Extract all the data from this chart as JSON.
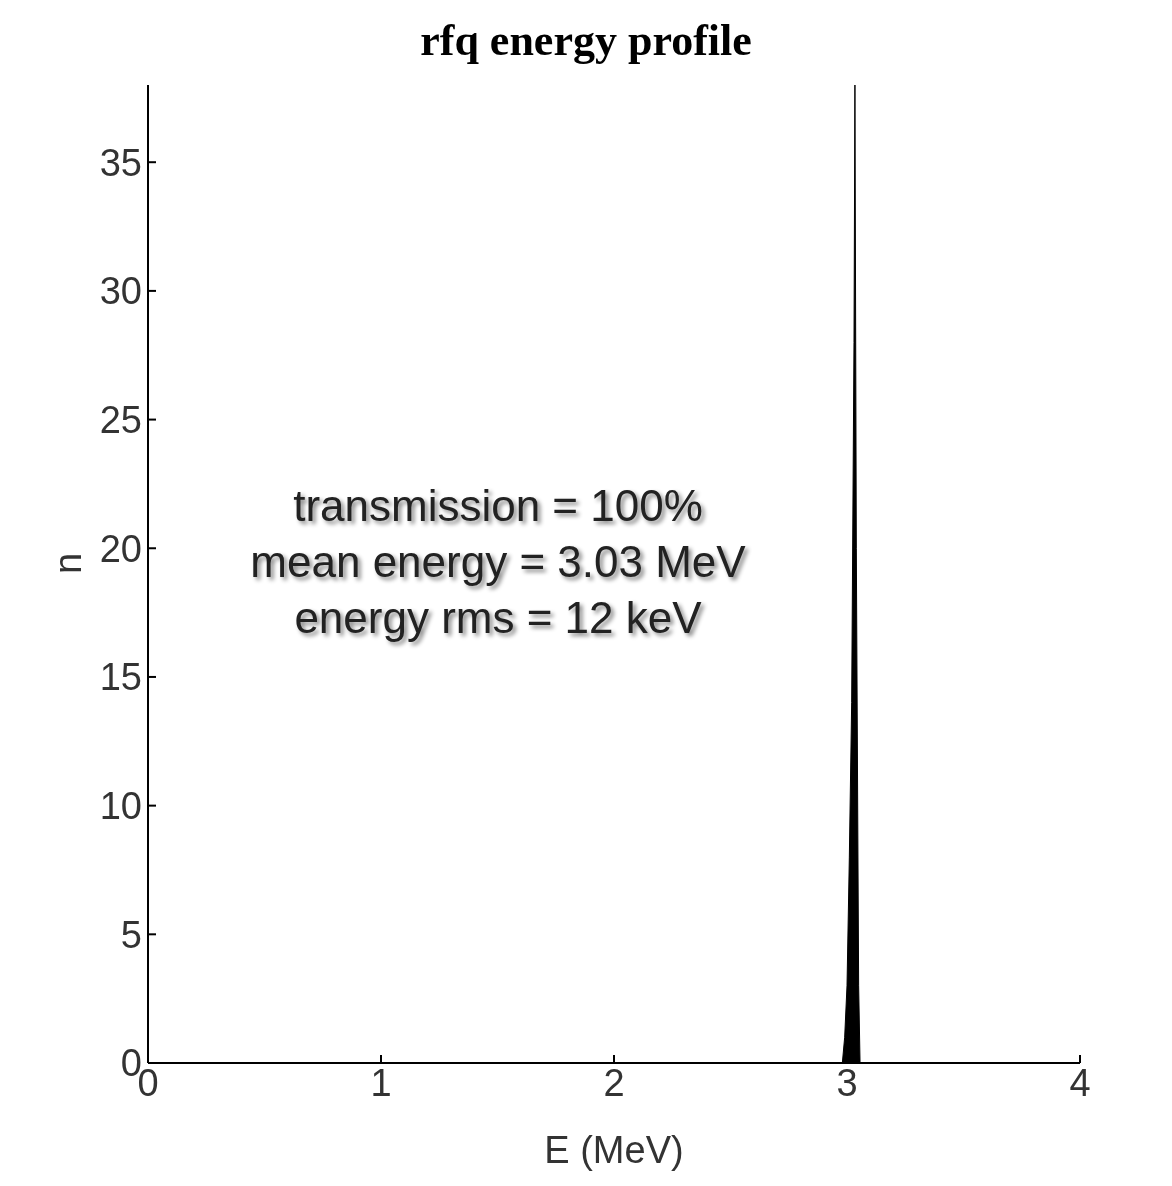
{
  "chart_data": {
    "type": "area",
    "title": "rfq energy profile",
    "xlabel": "E (MeV)",
    "ylabel": "n",
    "x": [
      2.98,
      2.99,
      3.0,
      3.01,
      3.02,
      3.03,
      3.034,
      3.04,
      3.05,
      3.056
    ],
    "series": [
      {
        "color": "#000000",
        "values": [
          0,
          1,
          3,
          8,
          14,
          28,
          38,
          20,
          3,
          0
        ]
      }
    ],
    "xlim": [
      0,
      4
    ],
    "xticks": [
      0,
      1,
      2,
      3,
      4
    ],
    "ylim": [
      0,
      38
    ],
    "yticks": [
      0,
      5,
      10,
      15,
      20,
      25,
      30,
      35
    ],
    "annotations": [
      "transmission = 100%",
      "mean energy = 3.03 MeV",
      "energy rms = 12 keV"
    ],
    "grid": false,
    "legend": false
  }
}
